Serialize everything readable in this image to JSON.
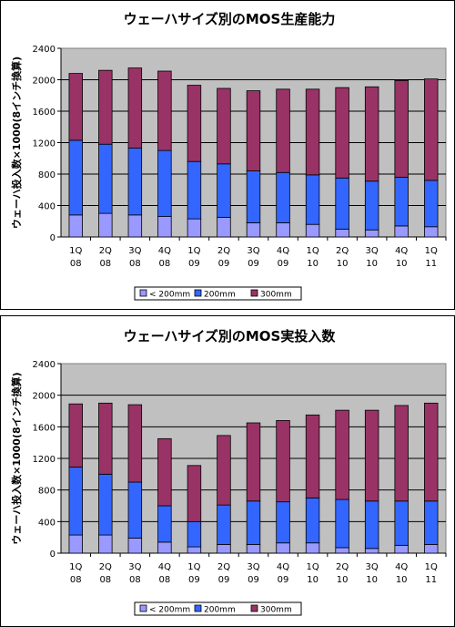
{
  "chart_data": [
    {
      "type": "bar",
      "stacked": true,
      "title": "ウェーハサイズ別のMOS生産能力",
      "ylabel": "ウェーハ投入数×1000(8インチ換算)",
      "xlabel": "",
      "ylim": [
        0,
        2400
      ],
      "yticks": [
        "0",
        "400",
        "800",
        "1200",
        "1600",
        "2000",
        "2400"
      ],
      "grid": true,
      "legend_position": "bottom",
      "categories": [
        [
          "1Q",
          "08"
        ],
        [
          "2Q",
          "08"
        ],
        [
          "3Q",
          "08"
        ],
        [
          "4Q",
          "08"
        ],
        [
          "1Q",
          "09"
        ],
        [
          "2Q",
          "09"
        ],
        [
          "3Q",
          "09"
        ],
        [
          "4Q",
          "09"
        ],
        [
          "1Q",
          "10"
        ],
        [
          "2Q",
          "10"
        ],
        [
          "3Q",
          "10"
        ],
        [
          "4Q",
          "10"
        ],
        [
          "1Q",
          "11"
        ]
      ],
      "series": [
        {
          "name": "< 200mm",
          "color": "#9999ff",
          "values": [
            280,
            300,
            280,
            260,
            230,
            250,
            180,
            180,
            160,
            100,
            90,
            140,
            130
          ]
        },
        {
          "name": "200mm",
          "color": "#3366ff",
          "values": [
            950,
            880,
            850,
            840,
            730,
            680,
            660,
            640,
            630,
            650,
            620,
            620,
            590
          ]
        },
        {
          "name": "300mm",
          "color": "#993366",
          "values": [
            850,
            940,
            1020,
            1010,
            970,
            960,
            1020,
            1060,
            1090,
            1150,
            1200,
            1230,
            1290
          ]
        }
      ]
    },
    {
      "type": "bar",
      "stacked": true,
      "title": "ウェーハサイズ別のMOS実投入数",
      "ylabel": "ウェーハ投入数×1000(8インチ換算)",
      "xlabel": "",
      "ylim": [
        0,
        2400
      ],
      "yticks": [
        "0",
        "400",
        "800",
        "1200",
        "1600",
        "2000",
        "2400"
      ],
      "grid": true,
      "legend_position": "bottom",
      "categories": [
        [
          "1Q",
          "08"
        ],
        [
          "2Q",
          "08"
        ],
        [
          "3Q",
          "08"
        ],
        [
          "4Q",
          "08"
        ],
        [
          "1Q",
          "09"
        ],
        [
          "2Q",
          "09"
        ],
        [
          "3Q",
          "09"
        ],
        [
          "4Q",
          "09"
        ],
        [
          "1Q",
          "10"
        ],
        [
          "2Q",
          "10"
        ],
        [
          "3Q",
          "10"
        ],
        [
          "4Q",
          "10"
        ],
        [
          "1Q",
          "11"
        ]
      ],
      "series": [
        {
          "name": "< 200mm",
          "color": "#9999ff",
          "values": [
            230,
            230,
            190,
            140,
            80,
            110,
            110,
            130,
            130,
            70,
            60,
            100,
            110
          ]
        },
        {
          "name": "200mm",
          "color": "#3366ff",
          "values": [
            860,
            770,
            710,
            460,
            320,
            500,
            550,
            520,
            570,
            610,
            600,
            560,
            550
          ]
        },
        {
          "name": "300mm",
          "color": "#993366",
          "values": [
            800,
            900,
            980,
            850,
            710,
            880,
            990,
            1030,
            1050,
            1130,
            1150,
            1210,
            1240
          ]
        }
      ]
    }
  ]
}
